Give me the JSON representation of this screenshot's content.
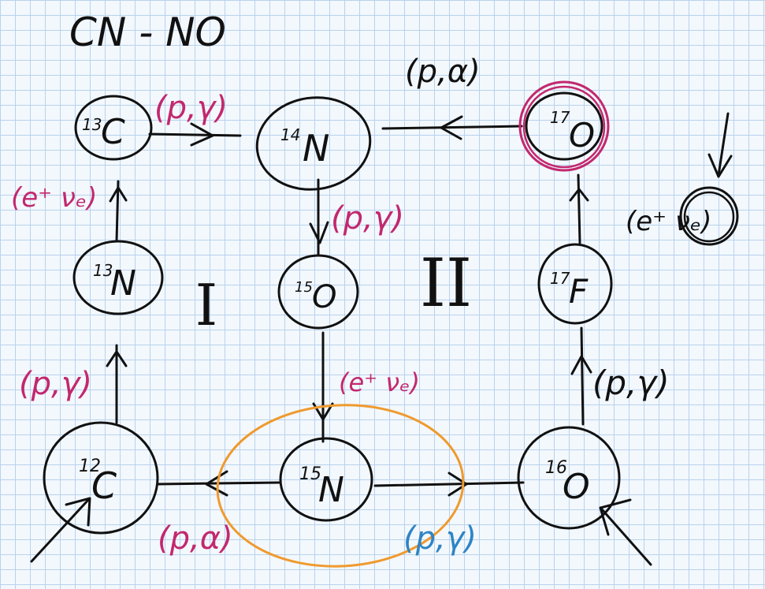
{
  "title": "CN - NO",
  "nuclei": {
    "c13": {
      "mass": "13",
      "element": "C"
    },
    "n14": {
      "mass": "14",
      "element": "N"
    },
    "o17": {
      "mass": "17",
      "element": "O"
    },
    "n13": {
      "mass": "13",
      "element": "N"
    },
    "o15": {
      "mass": "15",
      "element": "O"
    },
    "f17": {
      "mass": "17",
      "element": "F"
    },
    "c12": {
      "mass": "12",
      "element": "C"
    },
    "n15": {
      "mass": "15",
      "element": "N"
    },
    "o16": {
      "mass": "16",
      "element": "O"
    }
  },
  "reactions": {
    "c13_to_n14": "(p,γ)",
    "o17_to_n14": "(p,α)",
    "n13_to_c13": "(e⁺ νₑ)",
    "n14_to_o15": "(p,γ)",
    "f17_to_o17": "(e⁺ νₑ)",
    "c12_to_n13": "(p,γ)",
    "o15_to_n15": "(e⁺ νₑ)",
    "o16_to_f17": "(p,γ)",
    "n15_to_c12": "(p,α)",
    "n15_to_o16": "(p,γ)"
  },
  "cycles": {
    "cycle1": "I",
    "cycle2": "II"
  },
  "colors": {
    "ink": "#111111",
    "magenta": "#c2286e",
    "blue": "#2f84c4",
    "orange": "#ef9a2e",
    "grid": "#b8d2ec"
  }
}
